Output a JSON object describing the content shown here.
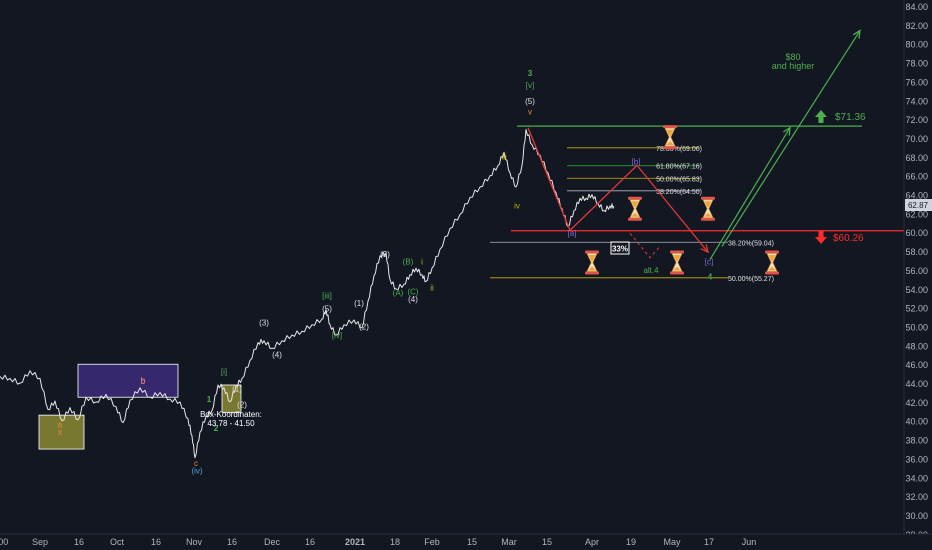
{
  "chart_data": {
    "type": "line",
    "x_ticks": [
      ":00",
      "Sep",
      "16",
      "Oct",
      "16",
      "Nov",
      "16",
      "Dec",
      "16",
      "2021",
      "18",
      "Feb",
      "15",
      "Mar",
      "15",
      "Apr",
      "19",
      "May",
      "17",
      "Jun"
    ],
    "y_ticks": [
      "84.00",
      "82.00",
      "80.00",
      "78.00",
      "76.00",
      "74.00",
      "72.00",
      "70.00",
      "68.00",
      "66.00",
      "64.00",
      "62.00",
      "60.00",
      "58.00",
      "56.00",
      "54.00",
      "52.00",
      "50.00",
      "48.00",
      "46.00",
      "44.00",
      "42.00",
      "40.00",
      "38.00",
      "36.00",
      "34.00",
      "32.00",
      "30.00",
      "28.00"
    ],
    "last_price": "62.87",
    "ylim": [
      28,
      84
    ],
    "price_path": [
      [
        0,
        44.8
      ],
      [
        10,
        44.6
      ],
      [
        20,
        44.1
      ],
      [
        30,
        45.4
      ],
      [
        40,
        44.6
      ],
      [
        48,
        41.3
      ],
      [
        55,
        42.2
      ],
      [
        62,
        40.1
      ],
      [
        70,
        41.5
      ],
      [
        78,
        40.2
      ],
      [
        86,
        42.6
      ],
      [
        96,
        42.1
      ],
      [
        106,
        42.9
      ],
      [
        116,
        41.6
      ],
      [
        123,
        39.9
      ],
      [
        130,
        42.3
      ],
      [
        140,
        43.6
      ],
      [
        150,
        42.6
      ],
      [
        160,
        43.1
      ],
      [
        170,
        42.4
      ],
      [
        180,
        42.1
      ],
      [
        188,
        40.3
      ],
      [
        192,
        38.5
      ],
      [
        195,
        36.2
      ],
      [
        200,
        38.9
      ],
      [
        206,
        40.6
      ],
      [
        212,
        41.2
      ],
      [
        218,
        43.9
      ],
      [
        224,
        43.6
      ],
      [
        230,
        42.1
      ],
      [
        236,
        43.8
      ],
      [
        242,
        44.6
      ],
      [
        250,
        46.5
      ],
      [
        258,
        48.4
      ],
      [
        264,
        48.6
      ],
      [
        272,
        47.8
      ],
      [
        282,
        48.6
      ],
      [
        292,
        49.2
      ],
      [
        302,
        49.6
      ],
      [
        312,
        50.3
      ],
      [
        322,
        50.9
      ],
      [
        326,
        51.9
      ],
      [
        330,
        50.3
      ],
      [
        336,
        49.2
      ],
      [
        344,
        50.3
      ],
      [
        354,
        50.8
      ],
      [
        362,
        50.0
      ],
      [
        368,
        52.8
      ],
      [
        374,
        55.5
      ],
      [
        380,
        57.6
      ],
      [
        386,
        57.9
      ],
      [
        390,
        55.1
      ],
      [
        396,
        54.1
      ],
      [
        404,
        54.6
      ],
      [
        410,
        55.6
      ],
      [
        416,
        56.3
      ],
      [
        422,
        55.6
      ],
      [
        426,
        54.9
      ],
      [
        432,
        56.3
      ],
      [
        440,
        58.3
      ],
      [
        450,
        60.5
      ],
      [
        460,
        62.0
      ],
      [
        470,
        63.8
      ],
      [
        480,
        64.9
      ],
      [
        490,
        66.1
      ],
      [
        498,
        67.2
      ],
      [
        504,
        68.6
      ],
      [
        510,
        66.4
      ],
      [
        516,
        64.9
      ],
      [
        522,
        67.2
      ],
      [
        526,
        71.0
      ],
      [
        532,
        69.4
      ],
      [
        540,
        68.3
      ],
      [
        548,
        66.4
      ],
      [
        556,
        64.3
      ],
      [
        562,
        62.6
      ],
      [
        568,
        60.7
      ],
      [
        574,
        62.4
      ],
      [
        580,
        63.7
      ],
      [
        586,
        63.7
      ],
      [
        592,
        64.1
      ],
      [
        598,
        63.2
      ],
      [
        604,
        62.4
      ],
      [
        610,
        62.9
      ],
      [
        614,
        62.87
      ]
    ],
    "price_lines": [
      {
        "name": "resistance",
        "value": 71.36,
        "label": "$71.36",
        "color": "#4caf50"
      },
      {
        "name": "support",
        "value": 60.26,
        "label": "$60.26",
        "color": "#ff2b2b"
      }
    ],
    "fib_levels": [
      {
        "label": "78.60%(69.06)",
        "value": 69.06,
        "color": "#c8b400"
      },
      {
        "label": "61.80%(67.16)",
        "value": 67.16,
        "color": "#2db82d"
      },
      {
        "label": "50.00%(65.83)",
        "value": 65.83,
        "color": "#c8b400"
      },
      {
        "label": "38.20%(64.50)",
        "value": 64.5,
        "color": "#b2b5be"
      },
      {
        "label": "38.20%(59.04)",
        "value": 59.04,
        "color": "#b2b5be"
      },
      {
        "label": "50.00%(55.27)",
        "value": 55.27,
        "color": "#c8b400"
      }
    ],
    "boxes": [
      {
        "name": "target-box-yellow",
        "x1": 39,
        "x2": 84,
        "y_top": 40.7,
        "y_bot": 37.1,
        "fill": "#8c8a32",
        "marker": "x",
        "marker_color": "#e57373"
      },
      {
        "name": "target-box-purple",
        "x1": 78,
        "x2": 178,
        "y_top": 46.1,
        "y_bot": 42.6,
        "fill": "#3d2c7a",
        "marker": "b",
        "marker_color": "#e57373"
      },
      {
        "name": "target-box-small",
        "x1": 222,
        "x2": 241,
        "y_top": 43.9,
        "y_bot": 41.0,
        "fill": "#8c8a32",
        "marker": "",
        "marker_color": ""
      }
    ],
    "box_label": {
      "line1": "Box-Koordinaten:",
      "line2": "43.78 - 41.50"
    },
    "wave_labels": [
      {
        "text": "a",
        "x": 60,
        "y": 39.4,
        "color": "#f28b30"
      },
      {
        "text": "b",
        "x": 143,
        "y": 44.0,
        "color": "#e57373"
      },
      {
        "text": "c",
        "x": 196,
        "y": 35.3,
        "color": "#f28b30"
      },
      {
        "text": "(iv)",
        "x": 197,
        "y": 34.5,
        "color": "#4aa3d6"
      },
      {
        "text": "1",
        "x": 209,
        "y": 42.1,
        "color": "#4caf50"
      },
      {
        "text": "2",
        "x": 216,
        "y": 39.0,
        "color": "#4caf50"
      },
      {
        "text": "[i]",
        "x": 224,
        "y": 45.0,
        "color": "#4caf50"
      },
      {
        "text": "(1)",
        "x": 237,
        "y": 43.2,
        "color": "#e0e0e0"
      },
      {
        "text": "(2)",
        "x": 242,
        "y": 41.5,
        "color": "#e0e0e0"
      },
      {
        "text": "(3)",
        "x": 264,
        "y": 50.2,
        "color": "#e0e0e0"
      },
      {
        "text": "(4)",
        "x": 277,
        "y": 46.8,
        "color": "#e0e0e0"
      },
      {
        "text": "[iii]",
        "x": 327,
        "y": 53.1,
        "color": "#4caf50"
      },
      {
        "text": "(5)",
        "x": 327,
        "y": 51.7,
        "color": "#e0e0e0"
      },
      {
        "text": "[iv]",
        "x": 337,
        "y": 48.9,
        "color": "#4caf50"
      },
      {
        "text": "(1)",
        "x": 359,
        "y": 52.3,
        "color": "#e0e0e0"
      },
      {
        "text": "(2)",
        "x": 364,
        "y": 49.8,
        "color": "#e0e0e0"
      },
      {
        "text": "(3)",
        "x": 385,
        "y": 57.5,
        "color": "#e0e0e0"
      },
      {
        "text": "(A)",
        "x": 398,
        "y": 53.4,
        "color": "#4caf50"
      },
      {
        "text": "(B)",
        "x": 408,
        "y": 56.7,
        "color": "#4caf50"
      },
      {
        "text": "(C)",
        "x": 413,
        "y": 53.5,
        "color": "#4caf50"
      },
      {
        "text": "(4)",
        "x": 413,
        "y": 52.7,
        "color": "#e0e0e0"
      },
      {
        "text": "i",
        "x": 422,
        "y": 56.7,
        "color": "#c8b400"
      },
      {
        "text": "ii",
        "x": 432,
        "y": 53.9,
        "color": "#c8b400"
      },
      {
        "text": "iii",
        "x": 504,
        "y": 67.8,
        "color": "#c8b400"
      },
      {
        "text": "iv",
        "x": 517,
        "y": 62.6,
        "color": "#c8b400"
      },
      {
        "text": "3",
        "x": 530,
        "y": 76.7,
        "color": "#4caf50"
      },
      {
        "text": "[v]",
        "x": 530,
        "y": 75.4,
        "color": "#4caf50"
      },
      {
        "text": "(5)",
        "x": 530,
        "y": 73.7,
        "color": "#e0e0e0"
      },
      {
        "text": "v",
        "x": 530,
        "y": 72.6,
        "color": "#f28b30"
      },
      {
        "text": "[a]",
        "x": 572,
        "y": 59.7,
        "color": "#7e6bd6"
      },
      {
        "text": "[b]",
        "x": 636,
        "y": 67.3,
        "color": "#7e6bd6"
      },
      {
        "text": "[c]",
        "x": 709,
        "y": 56.7,
        "color": "#7e6bd6"
      },
      {
        "text": "4",
        "x": 710,
        "y": 55.1,
        "color": "#4caf50"
      },
      {
        "text": "alt.4",
        "x": 651,
        "y": 55.8,
        "color": "#4caf50"
      }
    ],
    "pct_box": "33%",
    "target_label": {
      "line1": "$80",
      "line2": "and higher",
      "color": "#4caf50"
    },
    "projection_red": [
      [
        528,
        71.2
      ],
      [
        570,
        60.3
      ],
      [
        637,
        67.2
      ],
      [
        708,
        58.0
      ]
    ],
    "projection_green_short": [
      [
        710,
        57.2
      ],
      [
        790,
        71.2
      ]
    ],
    "projection_green_long": [
      [
        722,
        58.6
      ],
      [
        860,
        81.5
      ]
    ],
    "hourglasses": [
      [
        670,
        70.2
      ],
      [
        635,
        62.6
      ],
      [
        708,
        62.6
      ],
      [
        592,
        56.9
      ],
      [
        677,
        56.9
      ],
      [
        772,
        56.9
      ]
    ]
  }
}
